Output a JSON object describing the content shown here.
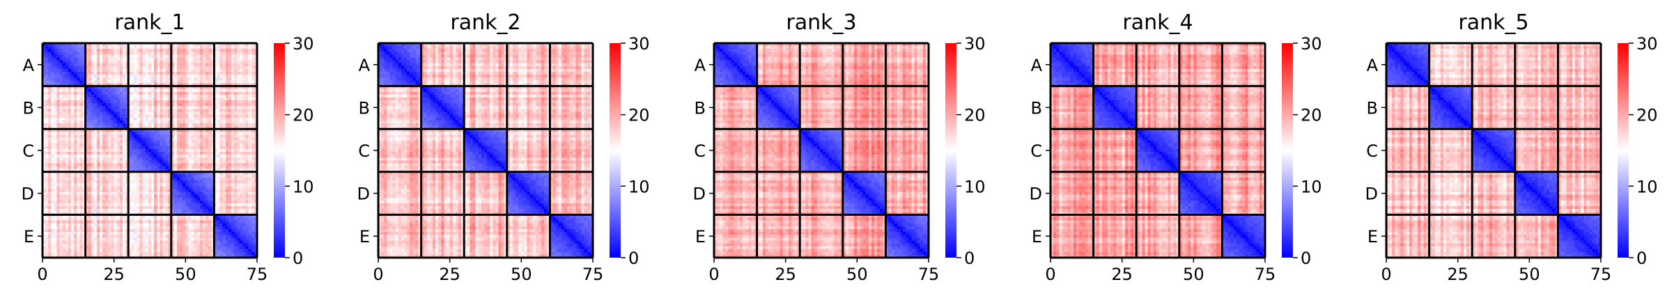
{
  "chart_data": [
    {
      "type": "heatmap",
      "title": "rank_1",
      "matrix_size": 75,
      "block_size": 15,
      "xticks": [
        0,
        25,
        50,
        75
      ],
      "ytick_labels": [
        "A",
        "B",
        "C",
        "D",
        "E"
      ],
      "colorbar": {
        "vmin": 0,
        "vmax": 30,
        "ticks": [
          0,
          10,
          20,
          30
        ],
        "colormap": "bwr"
      },
      "diagonal_value": 0,
      "within_block_edge_value": 8,
      "between_block_value": 17.5,
      "seed": 11
    },
    {
      "type": "heatmap",
      "title": "rank_2",
      "matrix_size": 75,
      "block_size": 15,
      "xticks": [
        0,
        25,
        50,
        75
      ],
      "ytick_labels": [
        "A",
        "B",
        "C",
        "D",
        "E"
      ],
      "colorbar": {
        "vmin": 0,
        "vmax": 30,
        "ticks": [
          0,
          10,
          20,
          30
        ],
        "colormap": "bwr"
      },
      "diagonal_value": 0,
      "within_block_edge_value": 7,
      "between_block_value": 18.5,
      "seed": 23
    },
    {
      "type": "heatmap",
      "title": "rank_3",
      "matrix_size": 75,
      "block_size": 15,
      "xticks": [
        0,
        25,
        50,
        75
      ],
      "ytick_labels": [
        "A",
        "B",
        "C",
        "D",
        "E"
      ],
      "colorbar": {
        "vmin": 0,
        "vmax": 30,
        "ticks": [
          0,
          10,
          20,
          30
        ],
        "colormap": "bwr"
      },
      "diagonal_value": 0,
      "within_block_edge_value": 7,
      "between_block_value": 20,
      "seed": 37
    },
    {
      "type": "heatmap",
      "title": "rank_4",
      "matrix_size": 75,
      "block_size": 15,
      "xticks": [
        0,
        25,
        50,
        75
      ],
      "ytick_labels": [
        "A",
        "B",
        "C",
        "D",
        "E"
      ],
      "colorbar": {
        "vmin": 0,
        "vmax": 30,
        "ticks": [
          0,
          10,
          20,
          30
        ],
        "colormap": "bwr"
      },
      "diagonal_value": 0,
      "within_block_edge_value": 6,
      "between_block_value": 20,
      "seed": 41
    },
    {
      "type": "heatmap",
      "title": "rank_5",
      "matrix_size": 75,
      "block_size": 15,
      "xticks": [
        0,
        25,
        50,
        75
      ],
      "ytick_labels": [
        "A",
        "B",
        "C",
        "D",
        "E"
      ],
      "colorbar": {
        "vmin": 0,
        "vmax": 30,
        "ticks": [
          0,
          10,
          20,
          30
        ],
        "colormap": "bwr"
      },
      "diagonal_value": 0,
      "within_block_edge_value": 6,
      "between_block_value": 19,
      "seed": 53
    }
  ]
}
